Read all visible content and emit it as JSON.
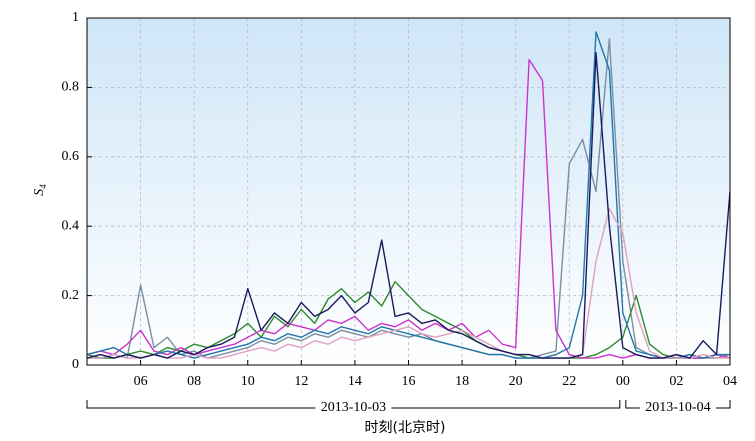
{
  "chart_data": {
    "type": "line",
    "ylabel": "S",
    "ylabel_subscript": "4",
    "xlabel": "时刻(北京时)",
    "xlim": [
      4,
      28
    ],
    "ylim": [
      0,
      1
    ],
    "xticks": [
      {
        "value": 6,
        "label": "06"
      },
      {
        "value": 8,
        "label": "08"
      },
      10,
      12,
      14,
      16,
      18,
      20,
      22,
      {
        "value": 24,
        "label": "00"
      },
      {
        "value": 26,
        "label": "02"
      },
      {
        "value": 28,
        "label": "04"
      }
    ],
    "yticks": [
      0,
      0.2,
      0.4,
      0.6,
      0.8,
      1
    ],
    "grid": true,
    "date_spans": [
      {
        "label": "2013-10-03",
        "from": 4,
        "to": 24
      },
      {
        "label": "2013-10-04",
        "from": 24,
        "to": 28
      }
    ],
    "x": [
      4,
      4.5,
      5,
      5.5,
      6,
      6.5,
      7,
      7.5,
      8,
      8.5,
      9,
      9.5,
      10,
      10.5,
      11,
      11.5,
      12,
      12.5,
      13,
      13.5,
      14,
      14.5,
      15,
      15.5,
      16,
      16.5,
      17,
      17.5,
      18,
      18.5,
      19,
      19.5,
      20,
      20.5,
      21,
      21.5,
      22,
      22.5,
      23,
      23.5,
      24,
      24.5,
      25,
      25.5,
      26,
      26.5,
      27,
      27.5,
      28
    ],
    "series": [
      {
        "color": "#7a8fa0",
        "values": [
          0.02,
          0.02,
          0.03,
          0.02,
          0.23,
          0.05,
          0.08,
          0.03,
          0.04,
          0.02,
          0.03,
          0.04,
          0.05,
          0.07,
          0.06,
          0.08,
          0.07,
          0.09,
          0.08,
          0.1,
          0.09,
          0.08,
          0.1,
          0.09,
          0.08,
          0.09,
          0.07,
          0.06,
          0.05,
          0.04,
          0.03,
          0.03,
          0.02,
          0.02,
          0.03,
          0.04,
          0.58,
          0.65,
          0.5,
          0.94,
          0.3,
          0.05,
          0.03,
          0.02,
          0.02,
          0.03,
          0.02,
          0.02,
          0.03
        ]
      },
      {
        "color": "#2e8b2e",
        "values": [
          0.03,
          0.02,
          0.02,
          0.03,
          0.04,
          0.03,
          0.05,
          0.04,
          0.06,
          0.05,
          0.07,
          0.09,
          0.12,
          0.08,
          0.14,
          0.11,
          0.16,
          0.12,
          0.19,
          0.22,
          0.18,
          0.21,
          0.17,
          0.24,
          0.2,
          0.16,
          0.14,
          0.12,
          0.1,
          0.07,
          0.05,
          0.04,
          0.03,
          0.02,
          0.02,
          0.02,
          0.02,
          0.02,
          0.03,
          0.05,
          0.08,
          0.2,
          0.06,
          0.03,
          0.02,
          0.02,
          0.02,
          0.03,
          0.02
        ]
      },
      {
        "color": "#cc33cc",
        "values": [
          0.03,
          0.04,
          0.03,
          0.06,
          0.1,
          0.04,
          0.03,
          0.05,
          0.03,
          0.04,
          0.05,
          0.06,
          0.08,
          0.1,
          0.09,
          0.12,
          0.11,
          0.1,
          0.13,
          0.12,
          0.14,
          0.1,
          0.12,
          0.11,
          0.13,
          0.1,
          0.12,
          0.1,
          0.12,
          0.08,
          0.1,
          0.06,
          0.05,
          0.88,
          0.82,
          0.1,
          0.03,
          0.02,
          0.02,
          0.03,
          0.02,
          0.03,
          0.02,
          0.02,
          0.03,
          0.02,
          0.02,
          0.03,
          0.02
        ]
      },
      {
        "color": "#2277aa",
        "values": [
          0.03,
          0.04,
          0.05,
          0.03,
          0.02,
          0.03,
          0.04,
          0.03,
          0.02,
          0.03,
          0.04,
          0.05,
          0.06,
          0.08,
          0.07,
          0.09,
          0.08,
          0.1,
          0.09,
          0.11,
          0.1,
          0.09,
          0.11,
          0.1,
          0.09,
          0.08,
          0.07,
          0.06,
          0.05,
          0.04,
          0.03,
          0.03,
          0.02,
          0.02,
          0.02,
          0.03,
          0.05,
          0.2,
          0.96,
          0.85,
          0.15,
          0.04,
          0.03,
          0.02,
          0.02,
          0.03,
          0.02,
          0.03,
          0.03
        ]
      },
      {
        "color": "#e0a0c0",
        "values": [
          0.02,
          0.02,
          0.03,
          0.02,
          0.02,
          0.03,
          0.02,
          0.02,
          0.03,
          0.02,
          0.02,
          0.03,
          0.04,
          0.05,
          0.04,
          0.06,
          0.05,
          0.07,
          0.06,
          0.08,
          0.07,
          0.08,
          0.09,
          0.1,
          0.11,
          0.09,
          0.08,
          0.09,
          0.1,
          0.08,
          0.06,
          0.04,
          0.03,
          0.03,
          0.02,
          0.02,
          0.02,
          0.03,
          0.3,
          0.45,
          0.38,
          0.15,
          0.04,
          0.02,
          0.02,
          0.02,
          0.03,
          0.02,
          0.02
        ]
      },
      {
        "color": "#1a1a5e",
        "values": [
          0.02,
          0.03,
          0.02,
          0.03,
          0.02,
          0.03,
          0.02,
          0.04,
          0.03,
          0.05,
          0.06,
          0.08,
          0.22,
          0.1,
          0.15,
          0.12,
          0.18,
          0.14,
          0.16,
          0.2,
          0.15,
          0.18,
          0.36,
          0.14,
          0.15,
          0.12,
          0.13,
          0.1,
          0.09,
          0.07,
          0.05,
          0.04,
          0.03,
          0.03,
          0.02,
          0.02,
          0.02,
          0.03,
          0.9,
          0.4,
          0.05,
          0.03,
          0.02,
          0.02,
          0.03,
          0.02,
          0.07,
          0.03,
          0.5
        ]
      }
    ]
  }
}
